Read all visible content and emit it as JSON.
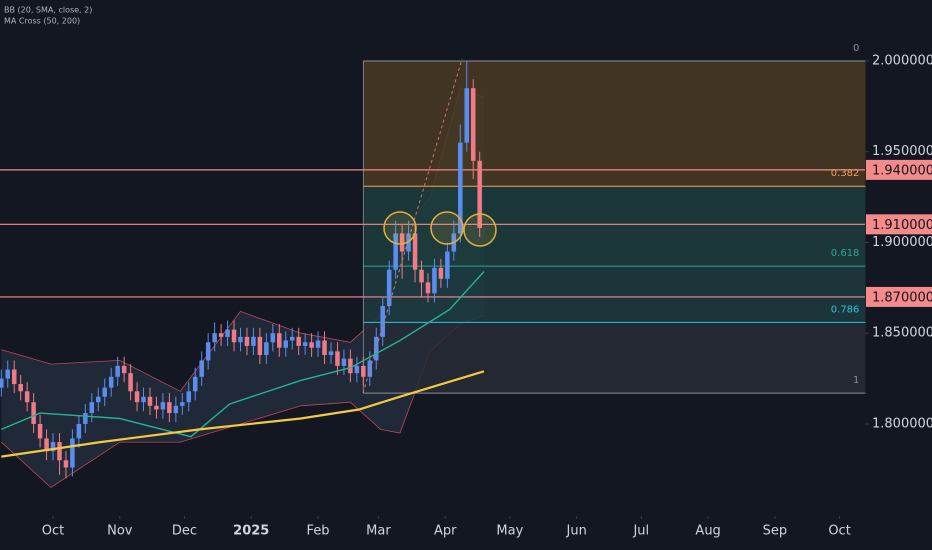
{
  "chart_data": {
    "type": "candlestick",
    "legend_labels": [
      "BB (20, SMA, close, 2)",
      "MA Cross (50, 200)"
    ],
    "up_color": "#5b8def",
    "down_color": "#f07a86",
    "x": [
      -24,
      -21,
      -18,
      -15,
      -12,
      -9,
      -6,
      -3,
      0,
      3,
      6,
      9,
      12,
      15,
      18,
      21,
      24,
      27,
      30,
      33,
      36,
      39,
      42,
      45,
      48,
      51,
      54,
      57,
      60,
      63,
      66,
      69,
      72,
      75,
      78,
      81,
      84,
      87,
      90,
      93,
      96,
      99,
      102,
      105,
      108,
      111,
      114,
      117,
      120,
      123,
      126,
      129,
      132,
      135,
      138,
      141,
      144,
      147,
      150,
      153,
      156,
      159,
      162,
      165,
      168,
      171,
      174,
      177,
      180,
      183,
      186,
      189,
      192,
      195,
      198
    ],
    "open": [
      1.82,
      1.825,
      1.83,
      1.822,
      1.818,
      1.812,
      1.8,
      1.792,
      1.785,
      1.79,
      1.78,
      1.776,
      1.792,
      1.8,
      1.806,
      1.812,
      1.815,
      1.82,
      1.826,
      1.832,
      1.828,
      1.818,
      1.812,
      1.815,
      1.81,
      1.808,
      1.812,
      1.806,
      1.81,
      1.812,
      1.818,
      1.826,
      1.835,
      1.845,
      1.85,
      1.848,
      1.852,
      1.845,
      1.848,
      1.843,
      1.848,
      1.838,
      1.845,
      1.85,
      1.842,
      1.846,
      1.848,
      1.843,
      1.845,
      1.842,
      1.846,
      1.838,
      1.84,
      1.832,
      1.836,
      1.828,
      1.832,
      1.826,
      1.835,
      1.848,
      1.865,
      1.885,
      1.905,
      1.895,
      1.905,
      1.885,
      1.878,
      1.872,
      1.886,
      1.88,
      1.895,
      1.905,
      1.955,
      1.985,
      1.945
    ],
    "high": [
      1.83,
      1.835,
      1.835,
      1.827,
      1.823,
      1.817,
      1.805,
      1.797,
      1.795,
      1.795,
      1.785,
      1.797,
      1.805,
      1.811,
      1.817,
      1.82,
      1.825,
      1.831,
      1.837,
      1.837,
      1.833,
      1.823,
      1.82,
      1.82,
      1.815,
      1.817,
      1.817,
      1.815,
      1.817,
      1.823,
      1.831,
      1.84,
      1.85,
      1.856,
      1.855,
      1.857,
      1.857,
      1.853,
      1.853,
      1.853,
      1.853,
      1.85,
      1.855,
      1.855,
      1.851,
      1.853,
      1.853,
      1.85,
      1.85,
      1.851,
      1.851,
      1.845,
      1.845,
      1.841,
      1.841,
      1.837,
      1.837,
      1.84,
      1.853,
      1.87,
      1.89,
      1.912,
      1.91,
      1.912,
      1.91,
      1.89,
      1.883,
      1.891,
      1.891,
      1.9,
      1.912,
      1.965,
      2.0,
      1.99,
      1.95
    ],
    "low": [
      1.815,
      1.82,
      1.817,
      1.813,
      1.807,
      1.795,
      1.787,
      1.78,
      1.78,
      1.772,
      1.77,
      1.771,
      1.787,
      1.795,
      1.801,
      1.807,
      1.81,
      1.815,
      1.821,
      1.823,
      1.813,
      1.807,
      1.807,
      1.805,
      1.803,
      1.803,
      1.801,
      1.801,
      1.805,
      1.807,
      1.813,
      1.821,
      1.83,
      1.84,
      1.843,
      1.843,
      1.84,
      1.84,
      1.838,
      1.838,
      1.833,
      1.833,
      1.84,
      1.837,
      1.837,
      1.841,
      1.838,
      1.838,
      1.837,
      1.837,
      1.833,
      1.833,
      1.827,
      1.827,
      1.823,
      1.823,
      1.821,
      1.821,
      1.83,
      1.843,
      1.86,
      1.88,
      1.88,
      1.89,
      1.878,
      1.87,
      1.867,
      1.867,
      1.875,
      1.875,
      1.89,
      1.9,
      1.95,
      1.935,
      1.903
    ],
    "close": [
      1.825,
      1.83,
      1.822,
      1.818,
      1.812,
      1.8,
      1.792,
      1.785,
      1.79,
      1.78,
      1.776,
      1.792,
      1.8,
      1.806,
      1.812,
      1.815,
      1.82,
      1.826,
      1.832,
      1.828,
      1.818,
      1.812,
      1.815,
      1.81,
      1.808,
      1.812,
      1.806,
      1.81,
      1.812,
      1.818,
      1.826,
      1.835,
      1.845,
      1.85,
      1.848,
      1.852,
      1.845,
      1.848,
      1.843,
      1.848,
      1.838,
      1.845,
      1.85,
      1.842,
      1.846,
      1.848,
      1.843,
      1.845,
      1.842,
      1.846,
      1.838,
      1.84,
      1.832,
      1.836,
      1.828,
      1.832,
      1.826,
      1.835,
      1.848,
      1.865,
      1.885,
      1.905,
      1.895,
      1.905,
      1.885,
      1.878,
      1.872,
      1.886,
      1.88,
      1.895,
      1.905,
      1.955,
      1.985,
      1.945,
      1.908
    ],
    "bands": {
      "color": "#c2455a",
      "fill": "#5d7fa3",
      "x": [
        -24,
        -1,
        31,
        59,
        87,
        115,
        138,
        152,
        161,
        175,
        189,
        200
      ],
      "upper": [
        1.841,
        1.833,
        1.835,
        1.818,
        1.862,
        1.85,
        1.845,
        1.86,
        1.905,
        1.925,
        1.985,
        1.98
      ],
      "lower": [
        1.79,
        1.765,
        1.79,
        1.79,
        1.8,
        1.81,
        1.812,
        1.797,
        1.795,
        1.84,
        1.855,
        1.86
      ]
    },
    "overlays": [
      {
        "color": "#26b38f",
        "x": [
          -24,
          -6,
          31,
          64,
          82,
          115,
          138,
          161,
          184,
          200
        ],
        "values": [
          1.797,
          1.806,
          1.803,
          1.793,
          1.811,
          1.824,
          1.831,
          1.846,
          1.863,
          1.884
        ]
      },
      {
        "color": "#f5c842",
        "x": [
          -24,
          22,
          68,
          115,
          142,
          161,
          200
        ],
        "values": [
          1.782,
          1.79,
          1.797,
          1.803,
          1.808,
          1.815,
          1.829
        ]
      }
    ],
    "fib": {
      "xlim": [
        144,
        377
      ],
      "levels": [
        {
          "level": 0,
          "price": 2.0,
          "color": "#8a8f9c",
          "fill": "#4a3a22"
        },
        {
          "level": 0.382,
          "price": 1.931,
          "color": "#f5a14a",
          "fill": "#1d3d3e"
        },
        {
          "level": 0.618,
          "price": 1.887,
          "color": "#26a69a",
          "fill": "#1d3b3f"
        },
        {
          "level": 0.786,
          "price": 1.856,
          "color": "#26c6da",
          "fill": "#272c36"
        },
        {
          "level": 1,
          "price": 1.817,
          "color": "#8a8f9c"
        }
      ]
    },
    "hlines": [
      {
        "value": 1.94,
        "label": "1.940000"
      },
      {
        "value": 1.91,
        "label": "1.910000"
      },
      {
        "value": 1.87,
        "label": "1.870000"
      }
    ],
    "hline_color": "#f48a8a",
    "xlim": [
      -24.6,
      376.8
    ],
    "ylim": [
      1.7526,
      2.0336
    ],
    "xticks": [
      {
        "value": 0,
        "label": "Oct"
      },
      {
        "value": 31,
        "label": "Nov"
      },
      {
        "value": 61,
        "label": "Dec"
      },
      {
        "value": 92,
        "label": "2025"
      },
      {
        "value": 123,
        "label": "Feb"
      },
      {
        "value": 151,
        "label": "Mar"
      },
      {
        "value": 182,
        "label": "Apr"
      },
      {
        "value": 212,
        "label": "May"
      },
      {
        "value": 243,
        "label": "Jun"
      },
      {
        "value": 273,
        "label": "Jul"
      },
      {
        "value": 304,
        "label": "Aug"
      },
      {
        "value": 335,
        "label": "Sep"
      },
      {
        "value": 365,
        "label": "Oct"
      }
    ],
    "yticks": [
      {
        "value": 2.0,
        "label": "2.000000"
      },
      {
        "value": 1.95,
        "label": "1.950000"
      },
      {
        "value": 1.9,
        "label": "1.900000"
      },
      {
        "value": 1.85,
        "label": "1.850000"
      },
      {
        "value": 1.8,
        "label": "1.800000"
      }
    ]
  }
}
